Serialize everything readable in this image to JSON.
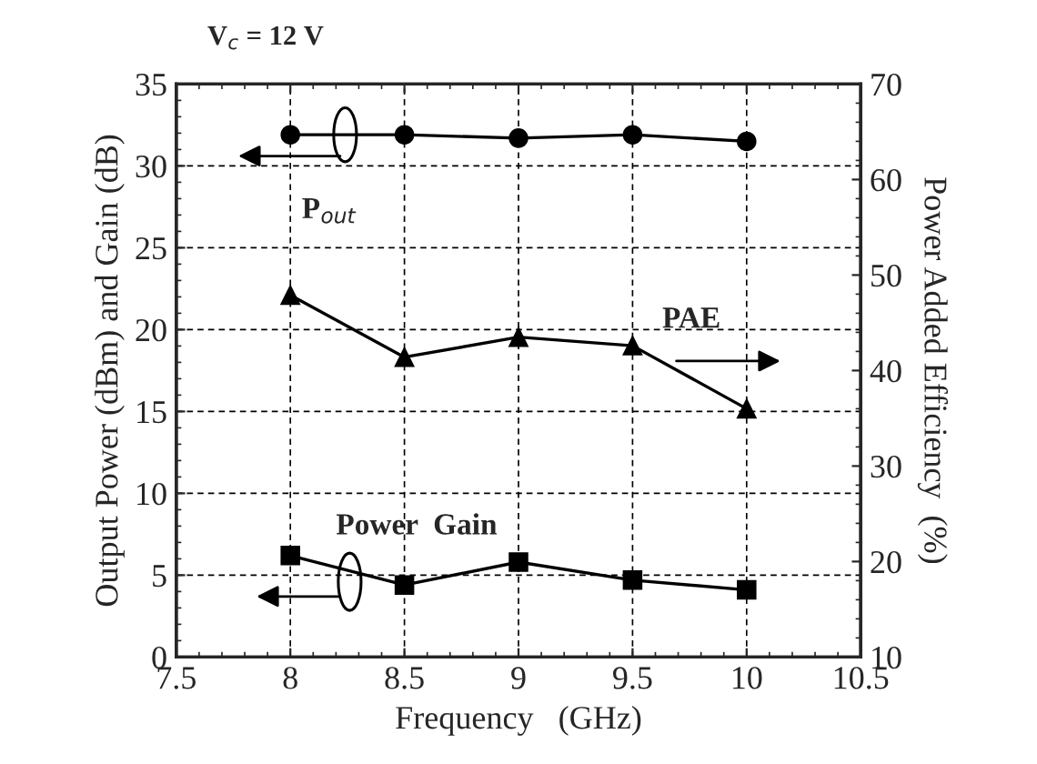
{
  "chart_data": {
    "type": "line",
    "title": "V$_{c}$ = 12 V",
    "xlabel": "Frequency   (GHz)",
    "ylabel": "Output Power (dBm) and Gain (dB)",
    "y2label": "Power Added Efficiency  (%)",
    "x": [
      8,
      8.5,
      9,
      9.5,
      10
    ],
    "series": [
      {
        "name": "P$_{out}$",
        "color": "#000000",
        "marker": "circle",
        "values": [
          31.9,
          31.9,
          31.7,
          31.9,
          31.5
        ]
      },
      {
        "name": "PAE",
        "color": "#000000",
        "marker": "triangle",
        "axis": "y2",
        "values": [
          47.9,
          41.4,
          43.5,
          42.6,
          36.0
        ]
      },
      {
        "name": "Power  Gain",
        "color": "#000000",
        "marker": "square",
        "values": [
          6.2,
          4.4,
          5.8,
          4.7,
          4.1
        ]
      }
    ],
    "xlim": [
      7.5,
      10.5
    ],
    "xticks": [
      7.5,
      8,
      8.5,
      9,
      9.5,
      10,
      10.5
    ],
    "ylim": [
      0,
      35
    ],
    "yticks": [
      0,
      5,
      10,
      15,
      20,
      25,
      30,
      35
    ],
    "y2lim": [
      10,
      70
    ],
    "y2ticks": [
      10,
      20,
      30,
      40,
      50,
      60,
      70
    ],
    "grid": true,
    "line_style": "solid"
  }
}
